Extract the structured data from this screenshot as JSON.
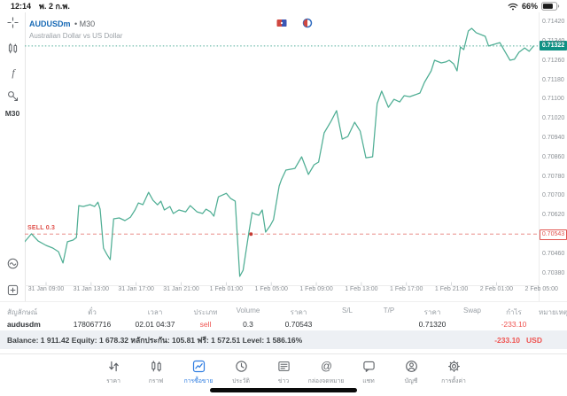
{
  "status_bar": {
    "time": "12:14",
    "date": "พ. 2 ก.พ.",
    "battery": "66%"
  },
  "sidebar": {
    "tools": [
      {
        "icon": "crosshair-icon"
      },
      {
        "icon": "candles-icon"
      },
      {
        "icon": "indicators-icon"
      },
      {
        "icon": "objects-icon"
      }
    ],
    "timeframe": "M30",
    "bottom_tools": [
      {
        "icon": "stats-icon"
      },
      {
        "icon": "add-chart-icon"
      }
    ]
  },
  "chart": {
    "symbol": "AUDUSDm",
    "timeframe_label": "• M30",
    "description": "Australian Dollar vs US Dollar",
    "sell_order_label": "SELL 0.3",
    "current_price_label": "0.71322",
    "sell_price_label": "0.70543",
    "overlay_icons": [
      {
        "icon": "calendar-flag-icon"
      },
      {
        "icon": "calendar-clock-icon"
      }
    ]
  },
  "chart_data": {
    "type": "line",
    "title": "AUDUSDm M30 line chart",
    "xlabel": "time",
    "ylabel": "price",
    "line_color": "#4fae94",
    "x_axis": {
      "unit": "hours from 31 Jan 09:00",
      "ticks": [
        {
          "t": 0,
          "label": "31 Jan 09:00"
        },
        {
          "t": 4,
          "label": "31 Jan 13:00"
        },
        {
          "t": 8,
          "label": "31 Jan 17:00"
        },
        {
          "t": 12,
          "label": "31 Jan 21:00"
        },
        {
          "t": 16,
          "label": "1 Feb 01:00"
        },
        {
          "t": 20,
          "label": "1 Feb 05:00"
        },
        {
          "t": 24,
          "label": "1 Feb 09:00"
        },
        {
          "t": 28,
          "label": "1 Feb 13:00"
        },
        {
          "t": 32,
          "label": "1 Feb 17:00"
        },
        {
          "t": 36,
          "label": "1 Feb 21:00"
        },
        {
          "t": 40,
          "label": "2 Feb 01:00"
        },
        {
          "t": 44,
          "label": "2 Feb 05:00"
        }
      ]
    },
    "y_axis": {
      "min": 0.70331,
      "max": 0.71461,
      "tick_step": 0.0008,
      "ticks": [
        0.7142,
        0.7134,
        0.7126,
        0.7118,
        0.711,
        0.7102,
        0.7094,
        0.7086,
        0.7078,
        0.707,
        0.7062,
        0.7046,
        0.7038
      ]
    },
    "current_price": 0.71322,
    "position_line": {
      "type": "sell",
      "volume": 0.3,
      "price": 0.70543
    },
    "entry_marker": {
      "t": 18.2,
      "price": 0.70543
    },
    "series": [
      {
        "name": "AUDUSDm",
        "points": [
          [
            -1.9,
            0.70511
          ],
          [
            -1.3,
            0.70544
          ],
          [
            -0.7,
            0.70514
          ],
          [
            0.0,
            0.70496
          ],
          [
            0.6,
            0.70485
          ],
          [
            1.1,
            0.7047
          ],
          [
            1.5,
            0.70423
          ],
          [
            1.9,
            0.70511
          ],
          [
            2.4,
            0.70518
          ],
          [
            2.7,
            0.70529
          ],
          [
            2.9,
            0.70661
          ],
          [
            3.3,
            0.70657
          ],
          [
            3.9,
            0.70665
          ],
          [
            4.3,
            0.70657
          ],
          [
            4.6,
            0.70675
          ],
          [
            4.8,
            0.70646
          ],
          [
            5.1,
            0.70485
          ],
          [
            5.4,
            0.70459
          ],
          [
            5.7,
            0.70437
          ],
          [
            6.0,
            0.70606
          ],
          [
            6.5,
            0.7061
          ],
          [
            7.0,
            0.70599
          ],
          [
            7.5,
            0.70613
          ],
          [
            7.9,
            0.70643
          ],
          [
            8.2,
            0.70672
          ],
          [
            8.6,
            0.70665
          ],
          [
            9.1,
            0.70716
          ],
          [
            9.5,
            0.70683
          ],
          [
            9.9,
            0.70664
          ],
          [
            10.2,
            0.70679
          ],
          [
            10.5,
            0.70643
          ],
          [
            11.0,
            0.70657
          ],
          [
            11.3,
            0.70628
          ],
          [
            11.8,
            0.70643
          ],
          [
            12.4,
            0.70635
          ],
          [
            12.8,
            0.70661
          ],
          [
            13.4,
            0.70635
          ],
          [
            13.9,
            0.70628
          ],
          [
            14.2,
            0.70646
          ],
          [
            14.6,
            0.70635
          ],
          [
            14.9,
            0.70617
          ],
          [
            15.3,
            0.70697
          ],
          [
            16.0,
            0.70712
          ],
          [
            16.4,
            0.7069
          ],
          [
            16.8,
            0.70679
          ],
          [
            17.2,
            0.70368
          ],
          [
            17.5,
            0.70393
          ],
          [
            18.0,
            0.70547
          ],
          [
            18.3,
            0.70632
          ],
          [
            18.6,
            0.70625
          ],
          [
            18.9,
            0.70621
          ],
          [
            19.2,
            0.70643
          ],
          [
            19.5,
            0.70551
          ],
          [
            19.9,
            0.70577
          ],
          [
            20.2,
            0.70603
          ],
          [
            20.7,
            0.70742
          ],
          [
            20.9,
            0.70768
          ],
          [
            21.3,
            0.70808
          ],
          [
            22.1,
            0.70815
          ],
          [
            22.7,
            0.70863
          ],
          [
            23.3,
            0.7079
          ],
          [
            23.8,
            0.7083
          ],
          [
            24.2,
            0.70841
          ],
          [
            24.7,
            0.70962
          ],
          [
            25.3,
            0.7101
          ],
          [
            25.8,
            0.71054
          ],
          [
            26.3,
            0.70936
          ],
          [
            26.8,
            0.70947
          ],
          [
            27.4,
            0.71006
          ],
          [
            27.9,
            0.70969
          ],
          [
            28.4,
            0.70859
          ],
          [
            29.0,
            0.70863
          ],
          [
            29.4,
            0.71083
          ],
          [
            29.8,
            0.71135
          ],
          [
            30.4,
            0.71068
          ],
          [
            30.9,
            0.71101
          ],
          [
            31.4,
            0.7109
          ],
          [
            31.8,
            0.71116
          ],
          [
            32.3,
            0.71112
          ],
          [
            32.8,
            0.7112
          ],
          [
            33.2,
            0.71127
          ],
          [
            33.6,
            0.71171
          ],
          [
            34.2,
            0.71219
          ],
          [
            34.5,
            0.71263
          ],
          [
            35.1,
            0.71252
          ],
          [
            35.5,
            0.71256
          ],
          [
            35.8,
            0.71263
          ],
          [
            36.2,
            0.71248
          ],
          [
            36.5,
            0.71219
          ],
          [
            36.8,
            0.71318
          ],
          [
            37.1,
            0.71307
          ],
          [
            37.5,
            0.71384
          ],
          [
            37.8,
            0.71395
          ],
          [
            38.2,
            0.71377
          ],
          [
            39.0,
            0.71362
          ],
          [
            39.3,
            0.71322
          ],
          [
            39.8,
            0.71329
          ],
          [
            40.3,
            0.71336
          ],
          [
            40.7,
            0.71303
          ],
          [
            41.2,
            0.71263
          ],
          [
            41.6,
            0.71267
          ],
          [
            42.0,
            0.71296
          ],
          [
            42.5,
            0.71314
          ],
          [
            42.9,
            0.713
          ],
          [
            43.3,
            0.71322
          ]
        ]
      }
    ]
  },
  "table": {
    "columns": [
      {
        "header": "สัญลักษณ์",
        "value": "audusdm",
        "align": "left",
        "bold": true
      },
      {
        "header": "ตั๋ว",
        "value": "178067716"
      },
      {
        "header": "เวลา",
        "value": "02.01 04:37"
      },
      {
        "header": "ประเภท",
        "value": "sell",
        "red": true
      },
      {
        "header": "Volume",
        "value": "0.3"
      },
      {
        "header": "ราคา",
        "value": "0.70543"
      },
      {
        "header": "S/L",
        "value": ""
      },
      {
        "header": "T/P",
        "value": ""
      },
      {
        "header": "ราคา",
        "value": "0.71320"
      },
      {
        "header": "Swap",
        "value": ""
      },
      {
        "header": "กำไร",
        "value": "-233.10",
        "red": true
      },
      {
        "header": "หมายเหตุ",
        "value": ""
      }
    ]
  },
  "balance": {
    "summary": "Balance: 1 911.42 Equity: 1 678.32 หลักประกัน: 105.81 ฟรี: 1 572.51 Level: 1 586.16%",
    "profit": "-233.10",
    "currency": "USD"
  },
  "nav": {
    "items": [
      {
        "label": "ราคา",
        "icon": "quotes-icon",
        "active": false
      },
      {
        "label": "กราฟ",
        "icon": "chart-icon",
        "active": false
      },
      {
        "label": "การซื้อขาย",
        "icon": "trade-icon",
        "active": true
      },
      {
        "label": "ประวัติ",
        "icon": "history-icon",
        "active": false
      },
      {
        "label": "ข่าว",
        "icon": "news-icon",
        "active": false
      },
      {
        "label": "กล่องจดหมาย",
        "icon": "mailbox-icon",
        "active": false
      },
      {
        "label": "แชท",
        "icon": "chat-icon",
        "active": false
      },
      {
        "label": "บัญชี",
        "icon": "account-icon",
        "active": false
      },
      {
        "label": "การตั้งค่า",
        "icon": "settings-icon",
        "active": false
      }
    ]
  },
  "colors": {
    "line_green": "#4fae94",
    "price_box_teal": "#0f9184",
    "sell_red": "#e0524d",
    "loss_red": "#ef5350",
    "nav_blue": "#2f7de1",
    "symbol_blue": "#1769b5"
  }
}
